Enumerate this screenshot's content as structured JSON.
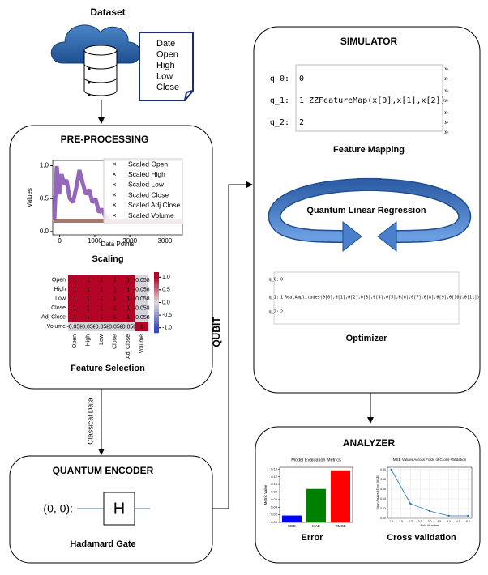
{
  "dataset": {
    "title": "Dataset",
    "fields": [
      "Date",
      "Open",
      "High",
      "Low",
      "Close"
    ]
  },
  "preprocessing": {
    "title": "PRE-PROCESSING",
    "scaling": {
      "y_label": "Values",
      "x_label": "Data Points",
      "xlim": [
        -200,
        3500
      ],
      "ylim": [
        -0.05,
        1.08
      ],
      "xticks": [
        0,
        1000,
        2000,
        3000
      ],
      "yticks": [
        {
          "value": 0,
          "label": "0.0"
        },
        {
          "value": 0.5,
          "label": "0.5"
        },
        {
          "value": 1,
          "label": "1.0"
        }
      ],
      "legend": [
        {
          "name": "Scaled Open",
          "color": "#1f77b4"
        },
        {
          "name": "Scaled High",
          "color": "#ff7f0e"
        },
        {
          "name": "Scaled Low",
          "color": "#2ca02c"
        },
        {
          "name": "Scaled Close",
          "color": "#d62728"
        },
        {
          "name": "Scaled Adj Close",
          "color": "#9467bd"
        },
        {
          "name": "Scaled Volume",
          "color": "#8c564b"
        }
      ],
      "caption": "Scaling"
    },
    "heatmap": {
      "labels": [
        "Open",
        "High",
        "Low",
        "Close",
        "Adj Close",
        "Volume"
      ],
      "values": [
        [
          1,
          1,
          1,
          1,
          1,
          -0.058
        ],
        [
          1,
          1,
          1,
          1,
          1,
          -0.058
        ],
        [
          1,
          1,
          1,
          1,
          1,
          -0.058
        ],
        [
          1,
          1,
          1,
          1,
          1,
          -0.058
        ],
        [
          1,
          1,
          1,
          1,
          1,
          -0.058
        ],
        [
          -0.058,
          -0.058,
          -0.058,
          -0.058,
          -0.058,
          1
        ]
      ],
      "colorbar_lim": [
        -1.2,
        1.2
      ],
      "colorbar_ticks": [
        {
          "value": 1,
          "label": "1.0"
        },
        {
          "value": 0.5,
          "label": "0.5"
        },
        {
          "value": 0,
          "label": "0.0"
        },
        {
          "value": -0.5,
          "label": "-0.5"
        },
        {
          "value": -1,
          "label": "-1.0"
        }
      ],
      "caption": "Feature Selection"
    }
  },
  "edge_label": "Classical Data",
  "encoder": {
    "title": "QUANTUM ENCODER",
    "qubit_label": "(0, 0):",
    "gate": "H",
    "caption": "Hadamard Gate"
  },
  "link_label": "QUBIT",
  "simulator": {
    "title": "SIMULATOR",
    "feature_map": {
      "wires": [
        "q_0:",
        "q_1:",
        "q_2:"
      ],
      "indices": [
        "0",
        "1",
        "2"
      ],
      "gate": "ZZFeatureMap(x[0],x[1],x[2])",
      "continuation": "»",
      "caption": "Feature Mapping"
    },
    "loop_label": "Quantum Linear Regression",
    "optimizer": {
      "wires": [
        "q_0:",
        "q_1:",
        "q_2:"
      ],
      "indices": [
        "0",
        "1",
        "2"
      ],
      "gate": "RealAmplitudes(θ[0],θ[1],θ[2],θ[3],θ[4],θ[5],θ[6],θ[7],θ[8],θ[9],θ[10],θ[11])",
      "caption": "Optimizer"
    }
  },
  "analyzer": {
    "title": "ANALYZER",
    "error_chart": {
      "title": "Model Evaluation Metrics",
      "y_label": "Metric Value",
      "categories": [
        "MSE",
        "MAE",
        "RMSE"
      ],
      "values": [
        0.018,
        0.088,
        0.137
      ],
      "colors": [
        "#0000ff",
        "#008000",
        "#ff0000"
      ],
      "ylim": [
        0,
        0.145
      ],
      "yticks": [
        {
          "value": 0,
          "label": "0.00"
        },
        {
          "value": 0.02,
          "label": "0.02"
        },
        {
          "value": 0.04,
          "label": "0.04"
        },
        {
          "value": 0.06,
          "label": "0.06"
        },
        {
          "value": 0.08,
          "label": "0.08"
        },
        {
          "value": 0.1,
          "label": "0.10"
        },
        {
          "value": 0.12,
          "label": "0.12"
        },
        {
          "value": 0.14,
          "label": "0.14"
        }
      ],
      "caption": "Error"
    },
    "cv_chart": {
      "title": "MSE Values Across Folds of Cross-Validation",
      "x_label": "Fold Number",
      "y_label": "Mean Squared Error (MSE)",
      "x": [
        1,
        2,
        3,
        4,
        5
      ],
      "values": [
        0.1,
        0.03,
        0.015,
        0.005,
        0.005
      ],
      "color": "#1f77b4",
      "xlim": [
        0.8,
        5.2
      ],
      "ylim": [
        0,
        0.105
      ],
      "xticks": [
        {
          "value": 1,
          "label": "1.0"
        },
        {
          "value": 1.5,
          "label": "1.5"
        },
        {
          "value": 2,
          "label": "2.0"
        },
        {
          "value": 2.5,
          "label": "2.5"
        },
        {
          "value": 3,
          "label": "3.0"
        },
        {
          "value": 3.5,
          "label": "3.5"
        },
        {
          "value": 4,
          "label": "4.0"
        },
        {
          "value": 4.5,
          "label": "4.5"
        },
        {
          "value": 5,
          "label": "5.0"
        }
      ],
      "yticks": [
        {
          "value": 0,
          "label": "0.00"
        },
        {
          "value": 0.02,
          "label": "0.02"
        },
        {
          "value": 0.04,
          "label": "0.04"
        },
        {
          "value": 0.06,
          "label": "0.06"
        },
        {
          "value": 0.08,
          "label": "0.08"
        },
        {
          "value": 0.1,
          "label": "0.10"
        }
      ],
      "caption": "Cross validation"
    }
  }
}
